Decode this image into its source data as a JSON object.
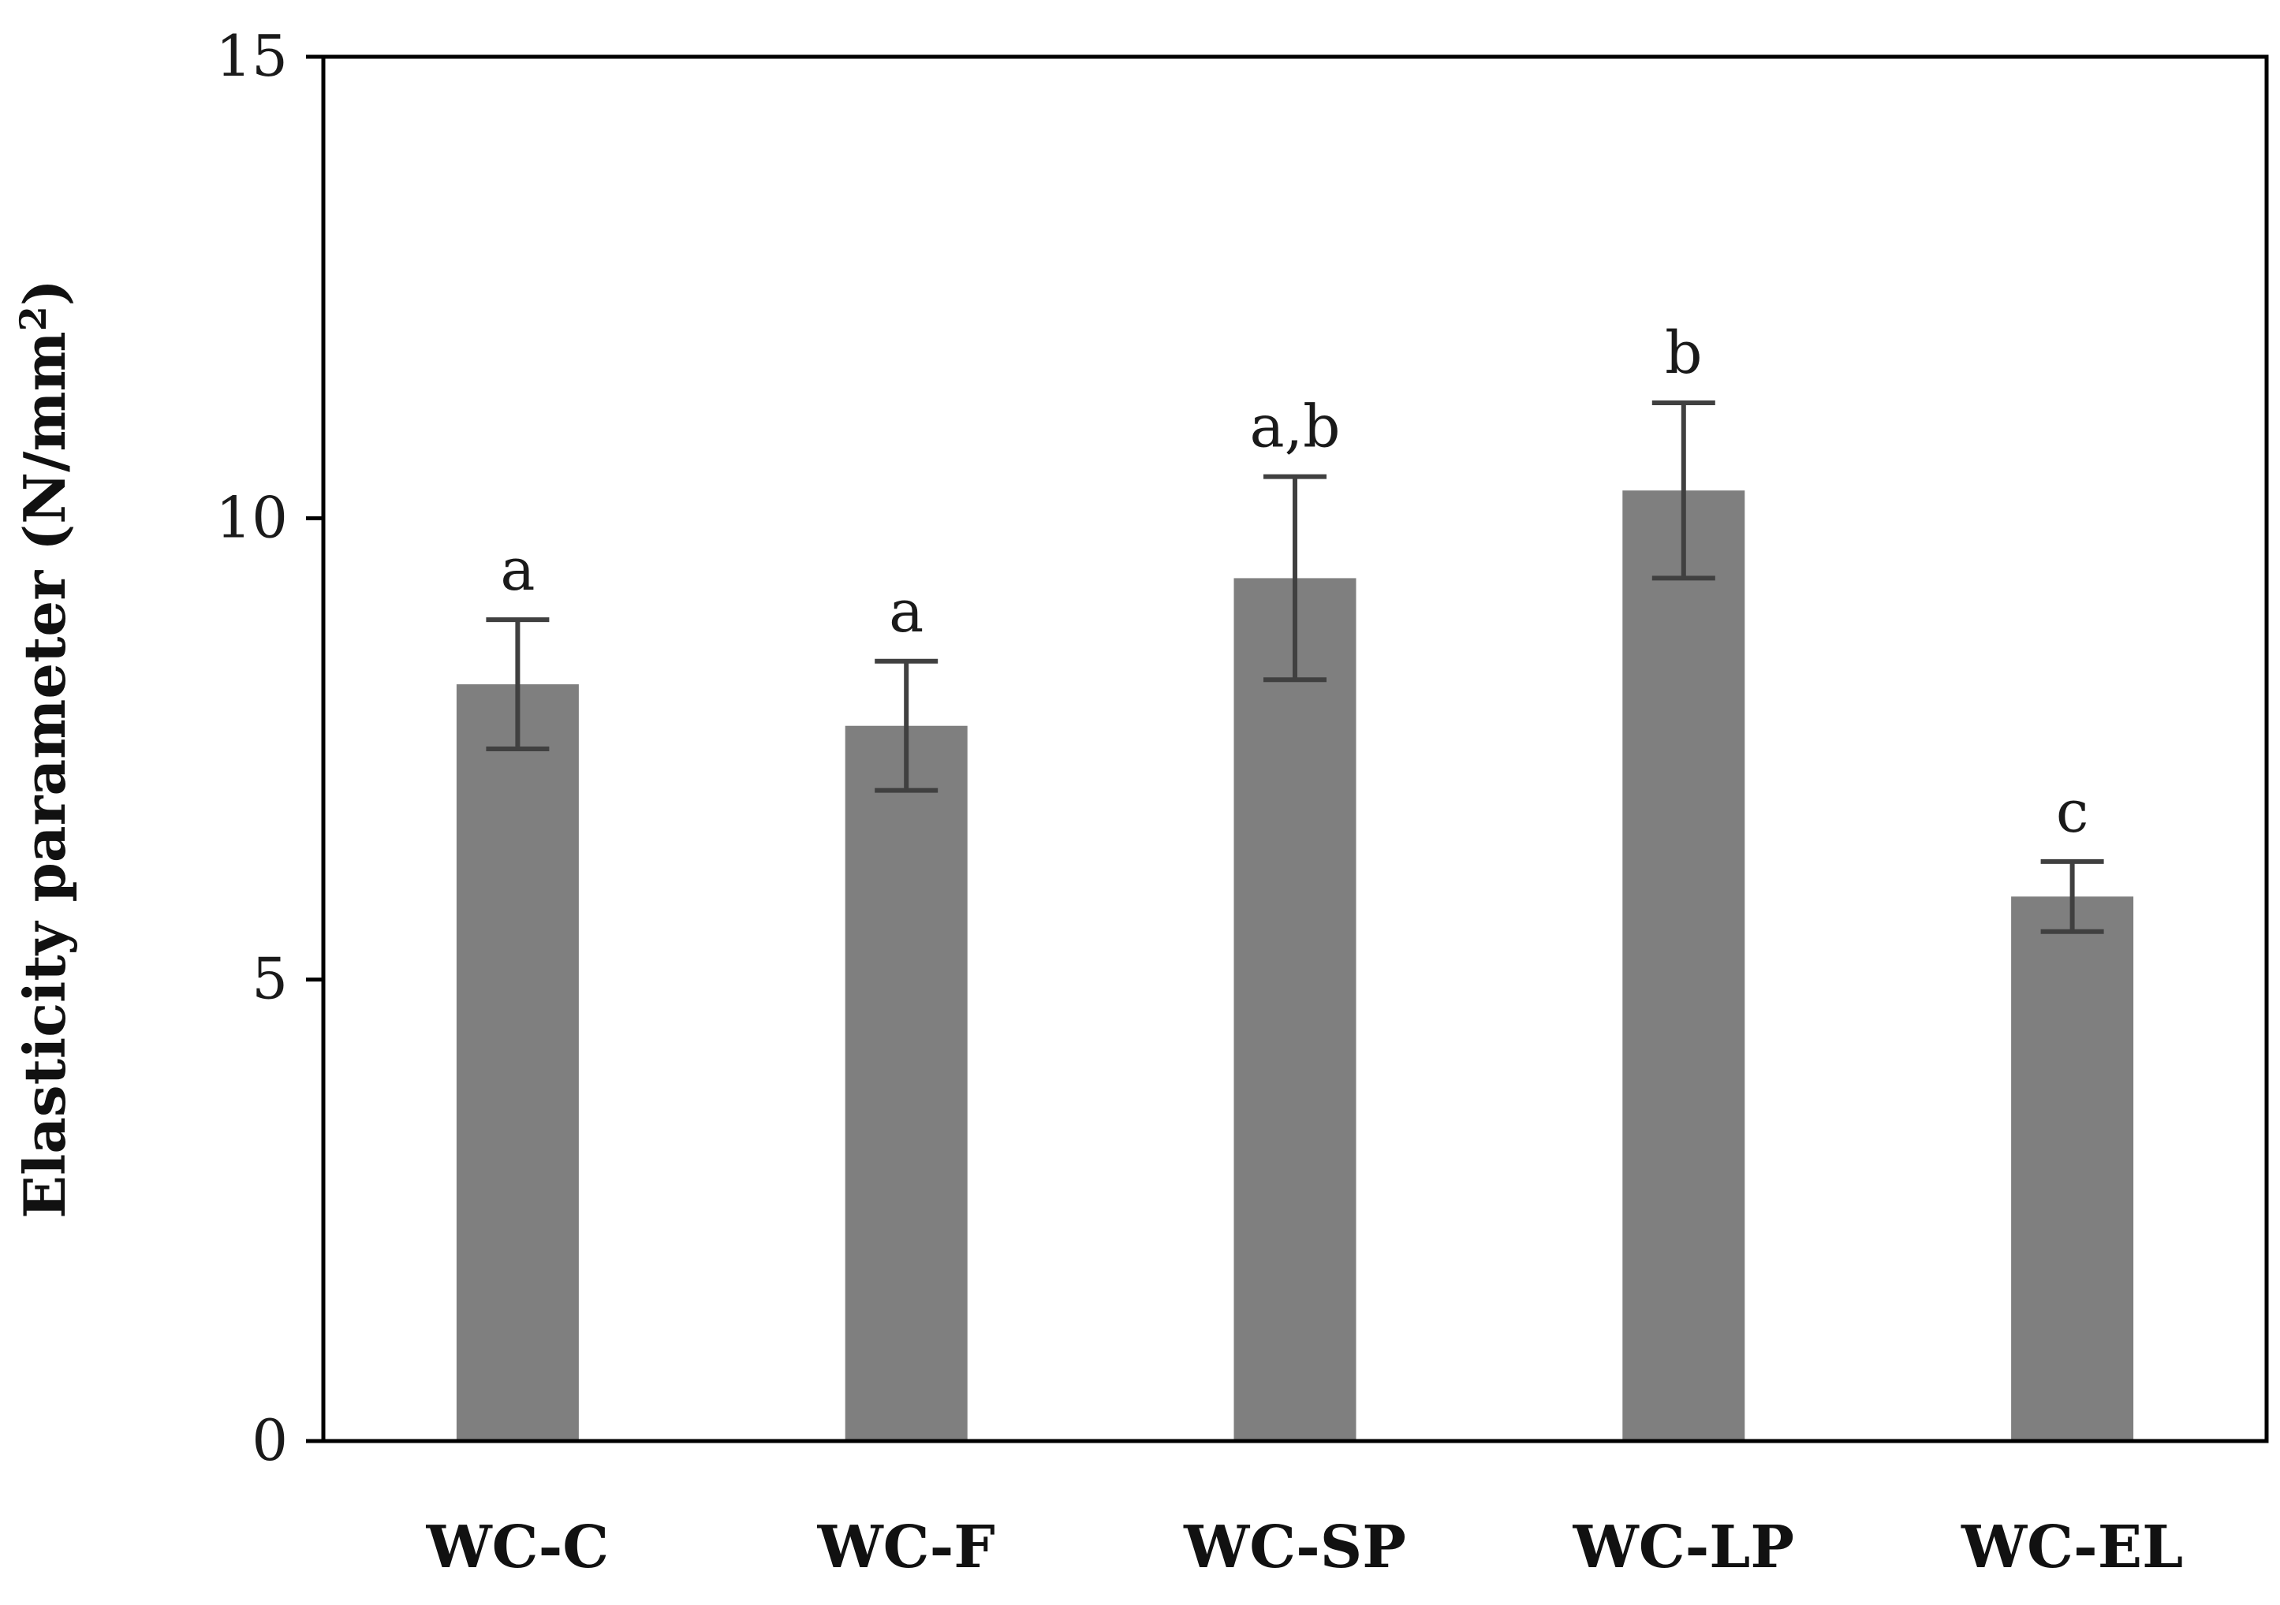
{
  "chart_data": {
    "type": "bar",
    "title": "",
    "xlabel": "",
    "ylabel": "Elasticity parameter (N/mm²)",
    "ylabel_main": "Elasticity parameter (N/mm",
    "ylabel_sup": "2",
    "ylabel_close": ")",
    "ylim": [
      0,
      15
    ],
    "yticks": [
      0,
      5,
      10,
      15
    ],
    "ytick_labels": [
      "0",
      "5",
      "10",
      "15"
    ],
    "categories": [
      "WC-C",
      "WC-F",
      "WC-SP",
      "WC-LP",
      "WC-EL"
    ],
    "values": [
      8.2,
      7.75,
      9.35,
      10.3,
      5.9
    ],
    "errors": [
      0.7,
      0.7,
      1.1,
      0.95,
      0.38
    ],
    "significance": [
      "a",
      "a",
      "a,b",
      "b",
      "c"
    ],
    "bar_color": "#7f7f7f",
    "error_color": "#404040",
    "grid": false
  }
}
